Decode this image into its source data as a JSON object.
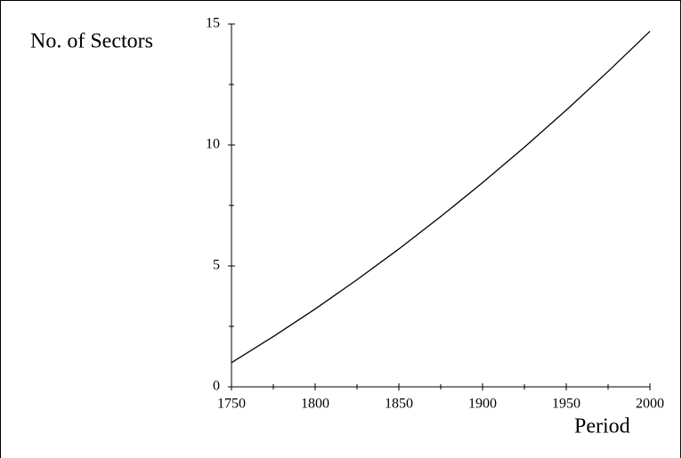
{
  "chart_data": {
    "type": "line",
    "ylabel": "No. of Sectors",
    "xlabel": "Period",
    "x": [
      1750,
      1775,
      1800,
      1825,
      1850,
      1875,
      1900,
      1925,
      1950,
      1975,
      2000
    ],
    "series": [
      {
        "color": "#000000",
        "values": [
          1,
          2.08,
          3.22,
          4.43,
          5.7,
          7.04,
          8.44,
          9.91,
          11.44,
          13.04,
          14.7
        ]
      }
    ],
    "xlim": [
      1750,
      2000
    ],
    "ylim": [
      0,
      15
    ],
    "xticks": [
      1750,
      1800,
      1850,
      1900,
      1950,
      2000
    ],
    "xminorticks": [
      1775,
      1825,
      1875,
      1925,
      1975
    ],
    "yticks": [
      0,
      5,
      10,
      15
    ],
    "yminorticks": [
      2.5,
      7.5,
      12.5
    ]
  }
}
